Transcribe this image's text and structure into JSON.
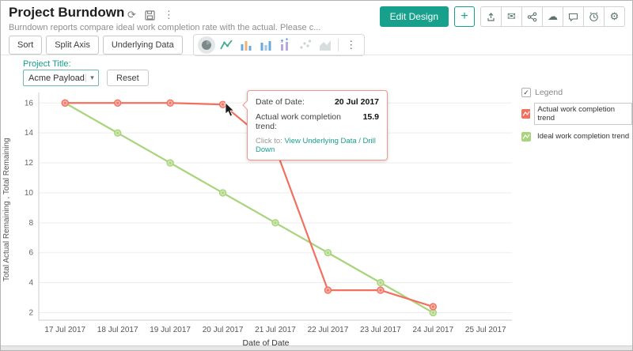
{
  "colors": {
    "accent": "#17a08c",
    "actual": "#f1705f",
    "ideal": "#a8d47d"
  },
  "icons": {
    "refresh": "⟳",
    "kebab": "⋮",
    "mail": "✉",
    "cloud": "☁",
    "gear": "⚙",
    "caret": "▾",
    "check": "✓",
    "plus": "+"
  },
  "header": {
    "title": "Project Burndown",
    "subtitle": "Burndown reports compare ideal work completion rate with the actual. Please c...",
    "edit_design": "Edit Design"
  },
  "toolbar": {
    "sort": "Sort",
    "split_axis": "Split Axis",
    "underlying_data": "Underlying Data"
  },
  "filter": {
    "label": "Project Title:",
    "value": "Acme Payload",
    "reset": "Reset"
  },
  "tooltip": {
    "row1_label": "Date of Date:",
    "row1_value": "20 Jul 2017",
    "row2_label": "Actual work completion trend:",
    "row2_value": "15.9",
    "click_label": "Click to:",
    "click_action": "View Underlying Data / Drill Down"
  },
  "legend": {
    "title": "Legend",
    "items": [
      {
        "label": "Actual work completion trend",
        "color": "#f1705f",
        "highlighted": true
      },
      {
        "label": "Ideal work completion trend",
        "color": "#a8d47d",
        "highlighted": false
      }
    ]
  },
  "chart_data": {
    "type": "line",
    "xlabel": "Date of Date",
    "ylabel": "Total Actual Remaining , Total Remaining",
    "categories": [
      "17 Jul 2017",
      "18 Jul 2017",
      "19 Jul 2017",
      "20 Jul 2017",
      "21 Jul 2017",
      "22 Jul 2017",
      "23 Jul 2017",
      "24 Jul 2017",
      "25 Jul 2017"
    ],
    "series": [
      {
        "name": "Actual work completion trend",
        "color": "#f1705f",
        "point_fill": "#f9b0a7",
        "values": [
          16,
          16,
          16,
          15.9,
          13,
          3.5,
          3.5,
          2.4,
          null
        ]
      },
      {
        "name": "Ideal work completion trend",
        "color": "#a8d47d",
        "point_fill": "#cde7ad",
        "values": [
          16,
          14,
          12,
          10,
          8,
          6,
          4,
          2,
          null
        ]
      }
    ],
    "yticks": [
      2,
      4,
      6,
      8,
      10,
      12,
      14,
      16
    ],
    "ylim": [
      1.5,
      16.7
    ],
    "grid": true,
    "legend_position": "right"
  }
}
